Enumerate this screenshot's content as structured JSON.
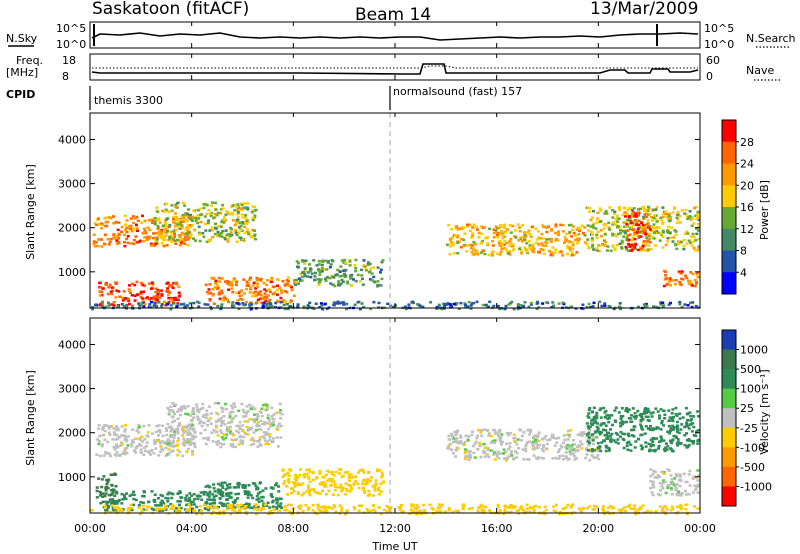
{
  "header": {
    "station": "Saskatoon (fitACF)",
    "beam": "Beam 14",
    "date": "13/Mar/2009"
  },
  "panels": {
    "sky": {
      "left_label": "N.Sky",
      "right_label": "N.Search",
      "left_ticks": [
        "10^5",
        "10^0"
      ],
      "right_ticks": [
        "10^5",
        "10^0"
      ]
    },
    "freq": {
      "left_label_1": "Freq.",
      "left_label_2": "[MHz]",
      "right_label": "Nave",
      "left_ticks": [
        "18",
        "8"
      ],
      "right_ticks": [
        "60",
        "0"
      ]
    },
    "cpid": {
      "label": "CPID",
      "program_1": "themis 3300",
      "program_2": "normalsound (fast) 157"
    }
  },
  "colorbars": {
    "power": {
      "label": "Power [dB]",
      "ticks": [
        "28",
        "24",
        "20",
        "16",
        "12",
        "8",
        "4"
      ],
      "colors": [
        "#ff0000",
        "#ff6600",
        "#ff9900",
        "#ffcc00",
        "#66aa33",
        "#448866",
        "#2255aa",
        "#0000ff"
      ]
    },
    "velocity": {
      "label": "Velocity [m s⁻¹]",
      "ticks": [
        "1000",
        "500",
        "100",
        "25",
        "-25",
        "-100",
        "-500",
        "-1000"
      ],
      "colors": [
        "#1a3db4",
        "#3a7a4a",
        "#2e8b57",
        "#55cc44",
        "#c0c0c0",
        "#ffcc00",
        "#ff9900",
        "#ff6600",
        "#ff0000"
      ]
    }
  },
  "axes": {
    "ylabel": "Slant Range [km]",
    "xlabel": "Time UT",
    "xticks": [
      "00:00",
      "04:00",
      "08:00",
      "12:00",
      "16:00",
      "20:00",
      "00:00"
    ],
    "yticks": [
      "4000",
      "3000",
      "2000",
      "1000"
    ]
  },
  "chart_data": [
    {
      "type": "heatmap",
      "name": "",
      "xlim_hours": [
        0,
        24
      ],
      "ylim_km": [
        180,
        4600
      ],
      "quantity": "Power [dB]",
      "regions": [
        {
          "label": "",
          "t_start": 0.1,
          "t_end": 4.0,
          "r_low": 1600,
          "r_high": 2300,
          "value": 24
        },
        {
          "label": "",
          "t_start": 0.3,
          "t_end": 3.5,
          "r_low": 250,
          "r_high": 800,
          "value": 28
        },
        {
          "label": "",
          "t_start": 2.5,
          "t_end": 6.5,
          "r_low": 1700,
          "r_high": 2600,
          "value": 16
        },
        {
          "label": "",
          "t_start": 4.5,
          "t_end": 8.0,
          "r_low": 300,
          "r_high": 900,
          "value": 24
        },
        {
          "label": "",
          "t_start": 8.0,
          "t_end": 11.5,
          "r_low": 700,
          "r_high": 1300,
          "value": 12
        },
        {
          "label": "",
          "t_start": 14.0,
          "t_end": 19.5,
          "r_low": 1400,
          "r_high": 2100,
          "value": 20
        },
        {
          "label": "",
          "t_start": 19.5,
          "t_end": 23.9,
          "r_low": 1500,
          "r_high": 2500,
          "value": 16
        },
        {
          "label": "",
          "t_start": 21.0,
          "t_end": 22.0,
          "r_low": 1500,
          "r_high": 2400,
          "value": 28
        },
        {
          "label": "",
          "t_start": 22.5,
          "t_end": 23.9,
          "r_low": 700,
          "r_high": 1100,
          "value": 24
        },
        {
          "label": "",
          "t_start": 0.0,
          "t_end": 23.9,
          "r_low": 180,
          "r_high": 350,
          "value": 8
        }
      ]
    },
    {
      "type": "heatmap",
      "name": "",
      "xlim_hours": [
        0,
        24
      ],
      "ylim_km": [
        180,
        4600
      ],
      "quantity": "Velocity [m s⁻¹]",
      "regions": [
        {
          "label": "",
          "t_start": 0.2,
          "t_end": 4.0,
          "r_low": 1500,
          "r_high": 2200,
          "value": 0
        },
        {
          "label": "",
          "t_start": 0.2,
          "t_end": 1.0,
          "r_low": 350,
          "r_high": 1100,
          "value": 600
        },
        {
          "label": "",
          "t_start": 0.5,
          "t_end": 5.5,
          "r_low": 250,
          "r_high": 700,
          "value": 150
        },
        {
          "label": "",
          "t_start": 3.0,
          "t_end": 7.5,
          "r_low": 1700,
          "r_high": 2700,
          "value": 0
        },
        {
          "label": "",
          "t_start": 4.5,
          "t_end": 7.5,
          "r_low": 300,
          "r_high": 900,
          "value": 300
        },
        {
          "label": "",
          "t_start": 7.5,
          "t_end": 11.5,
          "r_low": 600,
          "r_high": 1200,
          "value": -60
        },
        {
          "label": "",
          "t_start": 14.0,
          "t_end": 20.0,
          "r_low": 1400,
          "r_high": 2100,
          "value": 0
        },
        {
          "label": "",
          "t_start": 19.5,
          "t_end": 23.9,
          "r_low": 1600,
          "r_high": 2600,
          "value": 300
        },
        {
          "label": "",
          "t_start": 22.0,
          "t_end": 23.9,
          "r_low": 600,
          "r_high": 1200,
          "value": 0
        },
        {
          "label": "",
          "t_start": 0.0,
          "t_end": 23.9,
          "r_low": 180,
          "r_high": 400,
          "value": -60
        }
      ]
    }
  ]
}
